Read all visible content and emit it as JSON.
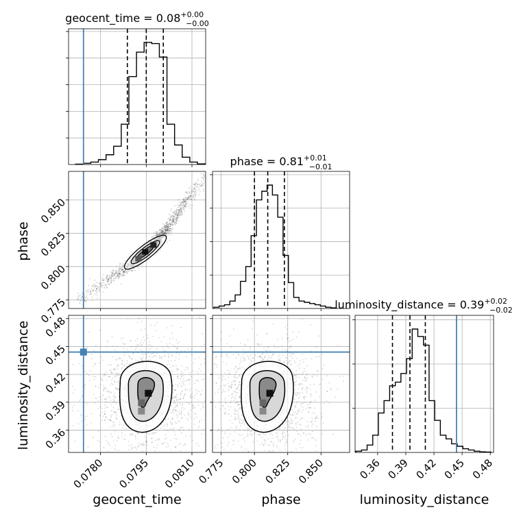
{
  "chart_data": {
    "type": "corner",
    "parameters": [
      "geocent_time",
      "phase",
      "luminosity_distance"
    ],
    "truths": {
      "geocent_time": 0.07744,
      "phase": null,
      "luminosity_distance": 0.444
    },
    "truth_color": "#4682b4",
    "panel_titles": {
      "geocent_time": {
        "median": "0.08",
        "plus": "+0.00",
        "minus": "−0.00"
      },
      "phase": {
        "median": "0.81",
        "plus": "+0.01",
        "minus": "−0.01"
      },
      "luminosity_distance": {
        "median": "0.39",
        "plus": "+0.02",
        "minus": "−0.02"
      }
    },
    "axes": {
      "geocent_time": {
        "range": [
          0.07695,
          0.08145
        ],
        "ticks": [
          0.078,
          0.0795,
          0.081
        ],
        "tick_labels": [
          "0.0780",
          "0.0795",
          "0.0810"
        ]
      },
      "phase": {
        "range": [
          0.7685,
          0.8715
        ],
        "ticks": [
          0.775,
          0.8,
          0.825,
          0.85
        ],
        "tick_labels": [
          "0.775",
          "0.800",
          "0.825",
          "0.850"
        ]
      },
      "luminosity_distance": {
        "range": [
          0.336,
          0.4835
        ],
        "ticks": [
          0.36,
          0.39,
          0.42,
          0.45,
          0.48
        ],
        "tick_labels": [
          "0.36",
          "0.39",
          "0.42",
          "0.45",
          "0.48"
        ]
      }
    },
    "grid": true,
    "marginals": {
      "geocent_time": {
        "quantiles": [
          0.07888,
          0.0795,
          0.08006
        ],
        "bin_edges": [
          0.07755,
          0.0779,
          0.07825,
          0.0786,
          0.07895,
          0.0793,
          0.07965,
          0.08,
          0.08035,
          0.0807,
          0.08105,
          0.0814
        ],
        "heights_detail": [
          {
            "x0": 0.07718,
            "x1": 0.07744,
            "h": 0.003
          },
          {
            "x0": 0.07744,
            "x1": 0.07768,
            "h": 0.01
          },
          {
            "x0": 0.07768,
            "x1": 0.07793,
            "h": 0.02
          },
          {
            "x0": 0.07793,
            "x1": 0.07818,
            "h": 0.04
          },
          {
            "x0": 0.07818,
            "x1": 0.07843,
            "h": 0.08
          },
          {
            "x0": 0.07843,
            "x1": 0.07868,
            "h": 0.15
          },
          {
            "x0": 0.07868,
            "x1": 0.07893,
            "h": 0.33
          },
          {
            "x0": 0.07893,
            "x1": 0.07918,
            "h": 0.72
          },
          {
            "x0": 0.07918,
            "x1": 0.07943,
            "h": 0.92
          },
          {
            "x0": 0.07943,
            "x1": 0.07968,
            "h": 1.0
          },
          {
            "x0": 0.07968,
            "x1": 0.07993,
            "h": 0.99
          },
          {
            "x0": 0.07993,
            "x1": 0.08018,
            "h": 0.88
          },
          {
            "x0": 0.08018,
            "x1": 0.08043,
            "h": 0.33
          },
          {
            "x0": 0.08043,
            "x1": 0.08068,
            "h": 0.16
          },
          {
            "x0": 0.08068,
            "x1": 0.08093,
            "h": 0.06
          },
          {
            "x0": 0.08093,
            "x1": 0.08118,
            "h": 0.02
          },
          {
            "x0": 0.08118,
            "x1": 0.08143,
            "h": 0.005
          }
        ]
      },
      "phase": {
        "quantiles": [
          0.8,
          0.81,
          0.8225
        ],
        "heights_detail": [
          {
            "x0": 0.7695,
            "x1": 0.7735,
            "h": 0.01
          },
          {
            "x0": 0.7735,
            "x1": 0.7775,
            "h": 0.02
          },
          {
            "x0": 0.7775,
            "x1": 0.7815,
            "h": 0.03
          },
          {
            "x0": 0.7815,
            "x1": 0.7855,
            "h": 0.06
          },
          {
            "x0": 0.7855,
            "x1": 0.7895,
            "h": 0.11
          },
          {
            "x0": 0.7895,
            "x1": 0.7935,
            "h": 0.22
          },
          {
            "x0": 0.7935,
            "x1": 0.7975,
            "h": 0.34
          },
          {
            "x0": 0.7975,
            "x1": 0.8015,
            "h": 0.59
          },
          {
            "x0": 0.8015,
            "x1": 0.8055,
            "h": 0.88
          },
          {
            "x0": 0.8055,
            "x1": 0.8095,
            "h": 0.95
          },
          {
            "x0": 0.8095,
            "x1": 0.8135,
            "h": 1.0
          },
          {
            "x0": 0.8135,
            "x1": 0.8175,
            "h": 0.92
          },
          {
            "x0": 0.8175,
            "x1": 0.8215,
            "h": 0.74
          },
          {
            "x0": 0.8215,
            "x1": 0.8255,
            "h": 0.43
          },
          {
            "x0": 0.8255,
            "x1": 0.8295,
            "h": 0.21
          },
          {
            "x0": 0.8295,
            "x1": 0.8335,
            "h": 0.09
          },
          {
            "x0": 0.8335,
            "x1": 0.8375,
            "h": 0.06
          },
          {
            "x0": 0.8375,
            "x1": 0.8415,
            "h": 0.05
          },
          {
            "x0": 0.8415,
            "x1": 0.8455,
            "h": 0.04
          },
          {
            "x0": 0.8455,
            "x1": 0.8495,
            "h": 0.03
          },
          {
            "x0": 0.8495,
            "x1": 0.8535,
            "h": 0.02
          },
          {
            "x0": 0.8535,
            "x1": 0.8575,
            "h": 0.01
          },
          {
            "x0": 0.8575,
            "x1": 0.8615,
            "h": 0.005
          }
        ]
      },
      "luminosity_distance": {
        "quantiles": [
          0.3758,
          0.3944,
          0.4108
        ],
        "heights_detail": [
          {
            "x0": 0.3368,
            "x1": 0.3428,
            "h": 0.01
          },
          {
            "x0": 0.3428,
            "x1": 0.3488,
            "h": 0.02
          },
          {
            "x0": 0.3488,
            "x1": 0.3548,
            "h": 0.06
          },
          {
            "x0": 0.3548,
            "x1": 0.3608,
            "h": 0.14
          },
          {
            "x0": 0.3608,
            "x1": 0.3668,
            "h": 0.32
          },
          {
            "x0": 0.3668,
            "x1": 0.3728,
            "h": 0.42
          },
          {
            "x0": 0.3728,
            "x1": 0.3788,
            "h": 0.54
          },
          {
            "x0": 0.3788,
            "x1": 0.3848,
            "h": 0.57
          },
          {
            "x0": 0.3848,
            "x1": 0.3908,
            "h": 0.64
          },
          {
            "x0": 0.3908,
            "x1": 0.3968,
            "h": 0.76
          },
          {
            "x0": 0.3968,
            "x1": 0.4028,
            "h": 1.0
          },
          {
            "x0": 0.4028,
            "x1": 0.4088,
            "h": 0.94
          },
          {
            "x0": 0.4088,
            "x1": 0.4148,
            "h": 0.87
          },
          {
            "x0": 0.4148,
            "x1": 0.4208,
            "h": 0.42
          },
          {
            "x0": 0.4208,
            "x1": 0.4268,
            "h": 0.26
          },
          {
            "x0": 0.4268,
            "x1": 0.4328,
            "h": 0.14
          },
          {
            "x0": 0.4328,
            "x1": 0.4388,
            "h": 0.11
          },
          {
            "x0": 0.4388,
            "x1": 0.4448,
            "h": 0.07
          },
          {
            "x0": 0.4448,
            "x1": 0.4508,
            "h": 0.05
          },
          {
            "x0": 0.4508,
            "x1": 0.4568,
            "h": 0.03
          },
          {
            "x0": 0.4568,
            "x1": 0.4628,
            "h": 0.02
          },
          {
            "x0": 0.4628,
            "x1": 0.4688,
            "h": 0.01
          },
          {
            "x0": 0.4688,
            "x1": 0.4748,
            "h": 0.005
          },
          {
            "x0": 0.4748,
            "x1": 0.4808,
            "h": 0.003
          }
        ]
      }
    },
    "joint": {
      "phase_vs_geocent_time": {
        "ridge": [
          {
            "x": 0.07735,
            "y": 0.775
          },
          {
            "x": 0.0779,
            "y": 0.785
          },
          {
            "x": 0.0786,
            "y": 0.795
          },
          {
            "x": 0.0792,
            "y": 0.805
          },
          {
            "x": 0.0797,
            "y": 0.815
          },
          {
            "x": 0.0801,
            "y": 0.826
          },
          {
            "x": 0.0806,
            "y": 0.842
          },
          {
            "x": 0.0811,
            "y": 0.858
          },
          {
            "x": 0.0814,
            "y": 0.866
          }
        ],
        "peak": {
          "x": 0.0795,
          "y": 0.81
        }
      },
      "luminosity_distance_vs_geocent_time": {
        "center": {
          "x": 0.0795,
          "y": 0.396
        },
        "spread": {
          "x": 0.0006,
          "y": 0.02
        }
      },
      "luminosity_distance_vs_phase": {
        "center": {
          "x": 0.81,
          "y": 0.396
        },
        "spread": {
          "x": 0.012,
          "y": 0.02
        }
      }
    }
  }
}
